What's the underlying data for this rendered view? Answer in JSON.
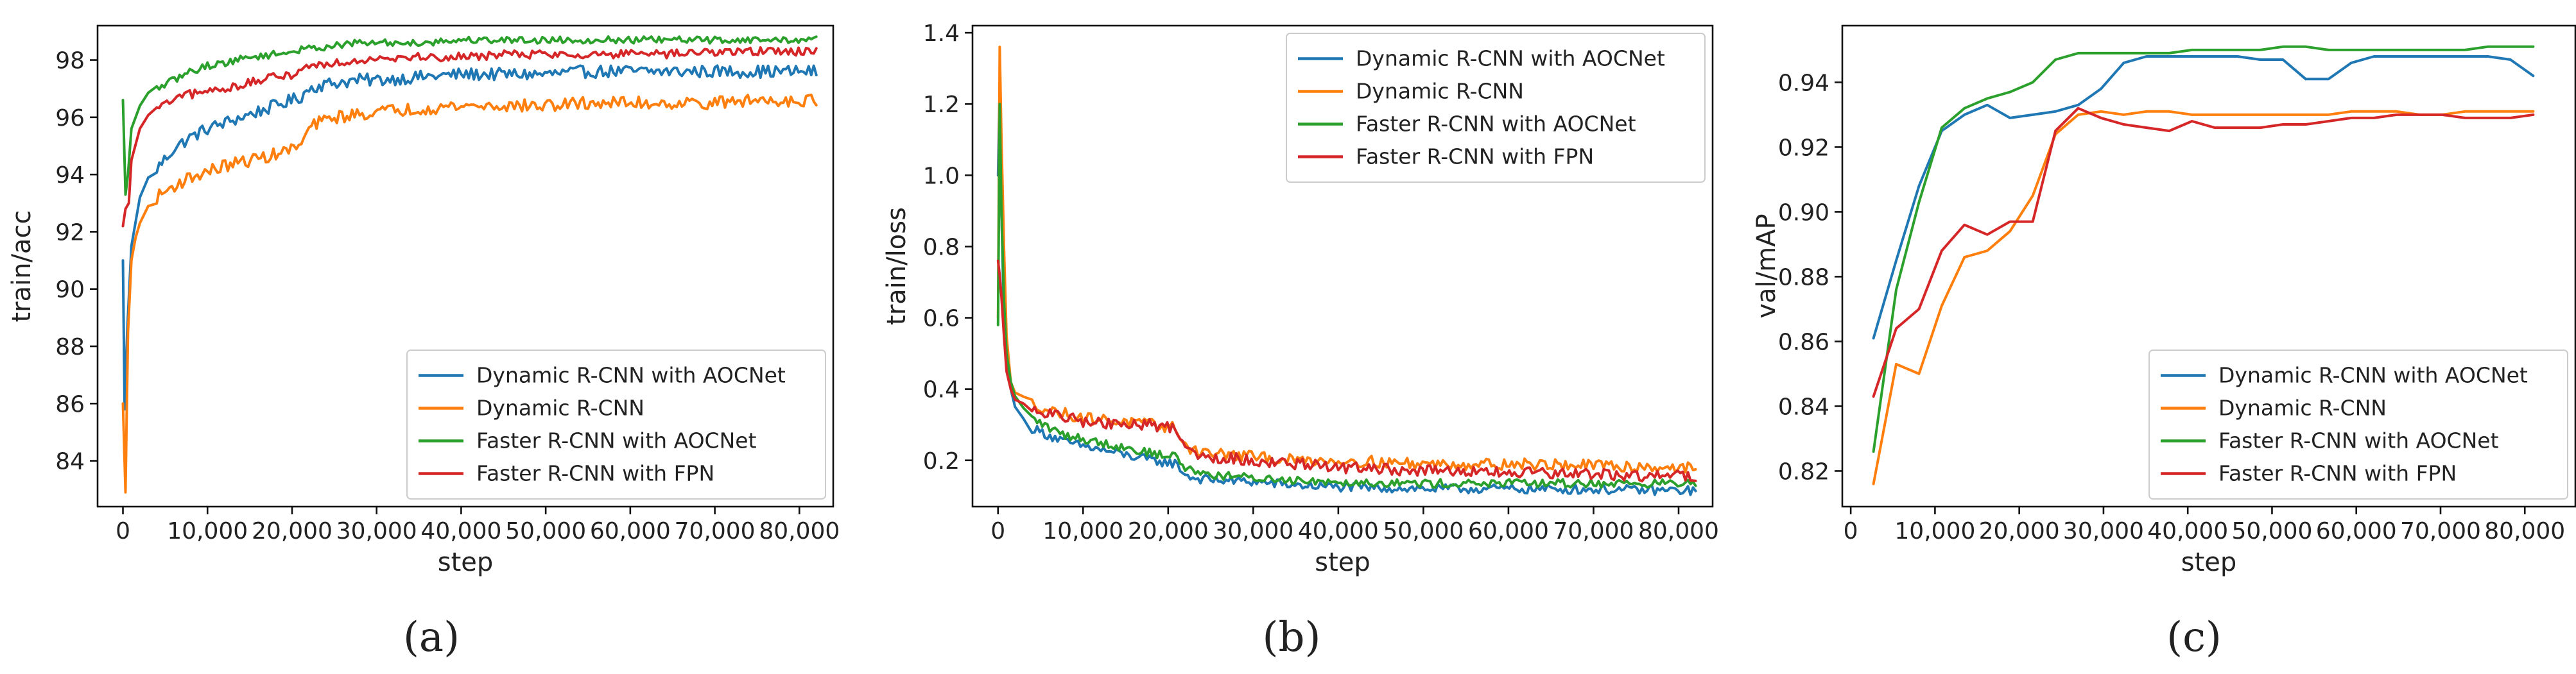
{
  "colors": {
    "blue": "#1f77b4",
    "orange": "#ff7f0e",
    "green": "#2ca02c",
    "red": "#d62728"
  },
  "chart_data": [
    {
      "id": "a",
      "type": "line",
      "caption": "(a)",
      "xlabel": "step",
      "ylabel": "train/acc",
      "xlim": [
        -3000,
        84000
      ],
      "ylim": [
        82.4,
        99.2
      ],
      "xticks": [
        0,
        10000,
        20000,
        30000,
        40000,
        50000,
        60000,
        70000,
        80000
      ],
      "xtick_labels": [
        "0",
        "10,000",
        "20,000",
        "30,000",
        "40,000",
        "50,000",
        "60,000",
        "70,000",
        "80,000"
      ],
      "yticks": [
        84,
        86,
        88,
        90,
        92,
        94,
        96,
        98
      ],
      "ytick_labels": [
        "84",
        "86",
        "88",
        "90",
        "92",
        "94",
        "96",
        "98"
      ],
      "legend_position": "lower-right",
      "noisy": true,
      "series": [
        {
          "name": "Dynamic R-CNN with AOCNet",
          "color_key": "blue",
          "noise": 0.22,
          "x": [
            0,
            200,
            500,
            1000,
            2000,
            3000,
            4000,
            6000,
            8000,
            10000,
            12000,
            15000,
            18000,
            20000,
            21000,
            22000,
            23000,
            25000,
            28000,
            30000,
            35000,
            40000,
            45000,
            50000,
            55000,
            60000,
            65000,
            70000,
            75000,
            80000,
            82000
          ],
          "y": [
            91.0,
            85.8,
            88.5,
            91.5,
            93.2,
            93.8,
            94.2,
            94.9,
            95.3,
            95.6,
            95.8,
            96.1,
            96.4,
            96.6,
            96.7,
            97.0,
            97.1,
            97.2,
            97.3,
            97.3,
            97.4,
            97.5,
            97.5,
            97.5,
            97.6,
            97.6,
            97.6,
            97.6,
            97.6,
            97.6,
            97.6
          ]
        },
        {
          "name": "Dynamic R-CNN",
          "color_key": "orange",
          "noise": 0.22,
          "x": [
            0,
            300,
            600,
            1000,
            1500,
            2000,
            3000,
            4000,
            6000,
            8000,
            10000,
            12000,
            15000,
            18000,
            20000,
            21000,
            22000,
            23000,
            25000,
            28000,
            30000,
            35000,
            40000,
            45000,
            50000,
            55000,
            60000,
            65000,
            70000,
            75000,
            80000,
            82000
          ],
          "y": [
            86.0,
            82.9,
            88.5,
            91.0,
            91.8,
            92.3,
            92.8,
            93.2,
            93.6,
            93.9,
            94.1,
            94.3,
            94.5,
            94.7,
            94.9,
            95.0,
            95.6,
            95.8,
            96.0,
            96.1,
            96.2,
            96.3,
            96.4,
            96.4,
            96.4,
            96.5,
            96.5,
            96.5,
            96.5,
            96.6,
            96.6,
            96.6
          ]
        },
        {
          "name": "Faster R-CNN with AOCNet",
          "color_key": "green",
          "noise": 0.12,
          "x": [
            0,
            300,
            600,
            1000,
            2000,
            3000,
            4000,
            6000,
            8000,
            10000,
            12000,
            15000,
            18000,
            20000,
            22000,
            25000,
            28000,
            30000,
            35000,
            40000,
            45000,
            50000,
            55000,
            60000,
            65000,
            70000,
            75000,
            80000,
            82000
          ],
          "y": [
            96.6,
            93.3,
            94.0,
            95.6,
            96.4,
            96.8,
            97.0,
            97.3,
            97.6,
            97.8,
            97.9,
            98.1,
            98.2,
            98.3,
            98.4,
            98.5,
            98.6,
            98.6,
            98.6,
            98.7,
            98.7,
            98.7,
            98.7,
            98.7,
            98.7,
            98.7,
            98.7,
            98.7,
            98.7
          ]
        },
        {
          "name": "Faster R-CNN with FPN",
          "color_key": "red",
          "noise": 0.15,
          "x": [
            0,
            300,
            700,
            1000,
            2000,
            3000,
            4000,
            6000,
            8000,
            10000,
            12000,
            15000,
            18000,
            20000,
            22000,
            25000,
            28000,
            30000,
            35000,
            40000,
            45000,
            50000,
            55000,
            60000,
            65000,
            70000,
            75000,
            80000,
            82000
          ],
          "y": [
            92.2,
            92.8,
            93.0,
            94.5,
            95.6,
            96.0,
            96.3,
            96.6,
            96.8,
            96.9,
            97.0,
            97.2,
            97.4,
            97.5,
            97.8,
            97.9,
            98.0,
            98.1,
            98.1,
            98.1,
            98.2,
            98.2,
            98.2,
            98.2,
            98.2,
            98.3,
            98.3,
            98.3,
            98.3
          ]
        }
      ]
    },
    {
      "id": "b",
      "type": "line",
      "caption": "(b)",
      "xlabel": "step",
      "ylabel": "train/loss",
      "xlim": [
        -3000,
        84000
      ],
      "ylim": [
        0.07,
        1.42
      ],
      "xticks": [
        0,
        10000,
        20000,
        30000,
        40000,
        50000,
        60000,
        70000,
        80000
      ],
      "xtick_labels": [
        "0",
        "10,000",
        "20,000",
        "30,000",
        "40,000",
        "50,000",
        "60,000",
        "70,000",
        "80,000"
      ],
      "yticks": [
        0.2,
        0.4,
        0.6,
        0.8,
        1.0,
        1.2,
        1.4
      ],
      "ytick_labels": [
        "0.2",
        "0.4",
        "0.6",
        "0.8",
        "1.0",
        "1.2",
        "1.4"
      ],
      "legend_position": "upper-right",
      "noisy": true,
      "series": [
        {
          "name": "Dynamic R-CNN with AOCNet",
          "color_key": "blue",
          "noise": 0.013,
          "x": [
            0,
            200,
            400,
            700,
            1000,
            1500,
            2000,
            3000,
            4000,
            6000,
            8000,
            10000,
            14000,
            18000,
            21000,
            22000,
            23000,
            25000,
            30000,
            35000,
            40000,
            50000,
            60000,
            70000,
            80000,
            82000
          ],
          "y": [
            1.0,
            1.25,
            0.9,
            0.6,
            0.48,
            0.4,
            0.35,
            0.31,
            0.29,
            0.27,
            0.25,
            0.24,
            0.22,
            0.2,
            0.19,
            0.16,
            0.15,
            0.145,
            0.14,
            0.13,
            0.125,
            0.12,
            0.12,
            0.118,
            0.115,
            0.115
          ]
        },
        {
          "name": "Dynamic R-CNN",
          "color_key": "orange",
          "noise": 0.016,
          "x": [
            0,
            200,
            400,
            700,
            1000,
            1500,
            2000,
            3000,
            4000,
            6000,
            8000,
            10000,
            14000,
            18000,
            21000,
            22000,
            23000,
            25000,
            30000,
            35000,
            40000,
            50000,
            60000,
            70000,
            80000,
            82000
          ],
          "y": [
            0.6,
            1.36,
            1.1,
            0.8,
            0.55,
            0.42,
            0.39,
            0.37,
            0.36,
            0.34,
            0.33,
            0.32,
            0.31,
            0.3,
            0.29,
            0.24,
            0.23,
            0.22,
            0.21,
            0.2,
            0.2,
            0.19,
            0.19,
            0.185,
            0.18,
            0.18
          ]
        },
        {
          "name": "Faster R-CNN with AOCNet",
          "color_key": "green",
          "noise": 0.012,
          "x": [
            0,
            200,
            400,
            700,
            1000,
            1500,
            2000,
            3000,
            4000,
            6000,
            8000,
            10000,
            14000,
            18000,
            21000,
            22000,
            23000,
            25000,
            30000,
            35000,
            40000,
            50000,
            60000,
            70000,
            80000,
            82000
          ],
          "y": [
            0.58,
            1.2,
            0.9,
            0.65,
            0.5,
            0.42,
            0.38,
            0.34,
            0.32,
            0.29,
            0.27,
            0.26,
            0.24,
            0.22,
            0.21,
            0.18,
            0.17,
            0.16,
            0.15,
            0.145,
            0.14,
            0.135,
            0.135,
            0.135,
            0.135,
            0.135
          ]
        },
        {
          "name": "Faster R-CNN with FPN",
          "color_key": "red",
          "noise": 0.016,
          "x": [
            0,
            200,
            400,
            700,
            1000,
            1500,
            2000,
            3000,
            4000,
            6000,
            8000,
            10000,
            14000,
            18000,
            21000,
            22000,
            23000,
            25000,
            30000,
            35000,
            40000,
            50000,
            60000,
            70000,
            80000,
            82000
          ],
          "y": [
            0.76,
            0.72,
            0.66,
            0.55,
            0.45,
            0.4,
            0.37,
            0.35,
            0.34,
            0.33,
            0.32,
            0.31,
            0.3,
            0.3,
            0.29,
            0.24,
            0.22,
            0.21,
            0.2,
            0.19,
            0.18,
            0.17,
            0.165,
            0.16,
            0.155,
            0.155
          ]
        }
      ]
    },
    {
      "id": "c",
      "type": "line",
      "caption": "(c)",
      "xlabel": "step",
      "ylabel": "val/mAP",
      "xlim": [
        -1000,
        86000
      ],
      "ylim": [
        0.809,
        0.9575
      ],
      "xticks": [
        0,
        10000,
        20000,
        30000,
        40000,
        50000,
        60000,
        70000,
        80000
      ],
      "xtick_labels": [
        "0",
        "10,000",
        "20,000",
        "30,000",
        "40,000",
        "50,000",
        "60,000",
        "70,000",
        "80,000"
      ],
      "yticks": [
        0.82,
        0.84,
        0.86,
        0.88,
        0.9,
        0.92,
        0.94
      ],
      "ytick_labels": [
        "0.82",
        "0.84",
        "0.86",
        "0.88",
        "0.90",
        "0.92",
        "0.94"
      ],
      "legend_position": "lower-right",
      "noisy": false,
      "series": [
        {
          "name": "Dynamic R-CNN with AOCNet",
          "color_key": "blue",
          "x": [
            2700,
            5400,
            8100,
            10800,
            13500,
            16200,
            18900,
            21600,
            24300,
            27000,
            29700,
            32400,
            35100,
            37800,
            40500,
            43200,
            45900,
            48600,
            51300,
            54000,
            56700,
            59400,
            62100,
            64800,
            67500,
            70200,
            72900,
            75600,
            78300,
            81000
          ],
          "y": [
            0.861,
            0.885,
            0.908,
            0.925,
            0.93,
            0.933,
            0.929,
            0.93,
            0.931,
            0.933,
            0.938,
            0.946,
            0.948,
            0.948,
            0.948,
            0.948,
            0.948,
            0.947,
            0.947,
            0.941,
            0.941,
            0.946,
            0.948,
            0.948,
            0.948,
            0.948,
            0.948,
            0.948,
            0.947,
            0.942
          ]
        },
        {
          "name": "Dynamic R-CNN",
          "color_key": "orange",
          "x": [
            2700,
            5400,
            8100,
            10800,
            13500,
            16200,
            18900,
            21600,
            24300,
            27000,
            29700,
            32400,
            35100,
            37800,
            40500,
            43200,
            45900,
            48600,
            51300,
            54000,
            56700,
            59400,
            62100,
            64800,
            67500,
            70200,
            72900,
            75600,
            78300,
            81000
          ],
          "y": [
            0.816,
            0.853,
            0.85,
            0.871,
            0.886,
            0.888,
            0.894,
            0.905,
            0.924,
            0.93,
            0.931,
            0.93,
            0.931,
            0.931,
            0.93,
            0.93,
            0.93,
            0.93,
            0.93,
            0.93,
            0.93,
            0.931,
            0.931,
            0.931,
            0.93,
            0.93,
            0.931,
            0.931,
            0.931,
            0.931
          ]
        },
        {
          "name": "Faster R-CNN with AOCNet",
          "color_key": "green",
          "x": [
            2700,
            5400,
            8100,
            10800,
            13500,
            16200,
            18900,
            21600,
            24300,
            27000,
            29700,
            32400,
            35100,
            37800,
            40500,
            43200,
            45900,
            48600,
            51300,
            54000,
            56700,
            59400,
            62100,
            64800,
            67500,
            70200,
            72900,
            75600,
            78300,
            81000
          ],
          "y": [
            0.826,
            0.876,
            0.903,
            0.926,
            0.932,
            0.935,
            0.937,
            0.94,
            0.947,
            0.949,
            0.949,
            0.949,
            0.949,
            0.949,
            0.95,
            0.95,
            0.95,
            0.95,
            0.951,
            0.951,
            0.95,
            0.95,
            0.95,
            0.95,
            0.95,
            0.95,
            0.95,
            0.951,
            0.951,
            0.951
          ]
        },
        {
          "name": "Faster R-CNN with FPN",
          "color_key": "red",
          "x": [
            2700,
            5400,
            8100,
            10800,
            13500,
            16200,
            18900,
            21600,
            24300,
            27000,
            29700,
            32400,
            35100,
            37800,
            40500,
            43200,
            45900,
            48600,
            51300,
            54000,
            56700,
            59400,
            62100,
            64800,
            67500,
            70200,
            72900,
            75600,
            78300,
            81000
          ],
          "y": [
            0.843,
            0.864,
            0.87,
            0.888,
            0.896,
            0.893,
            0.897,
            0.897,
            0.925,
            0.932,
            0.929,
            0.927,
            0.926,
            0.925,
            0.928,
            0.926,
            0.926,
            0.926,
            0.927,
            0.927,
            0.928,
            0.929,
            0.929,
            0.93,
            0.93,
            0.93,
            0.929,
            0.929,
            0.929,
            0.93
          ]
        }
      ]
    }
  ]
}
